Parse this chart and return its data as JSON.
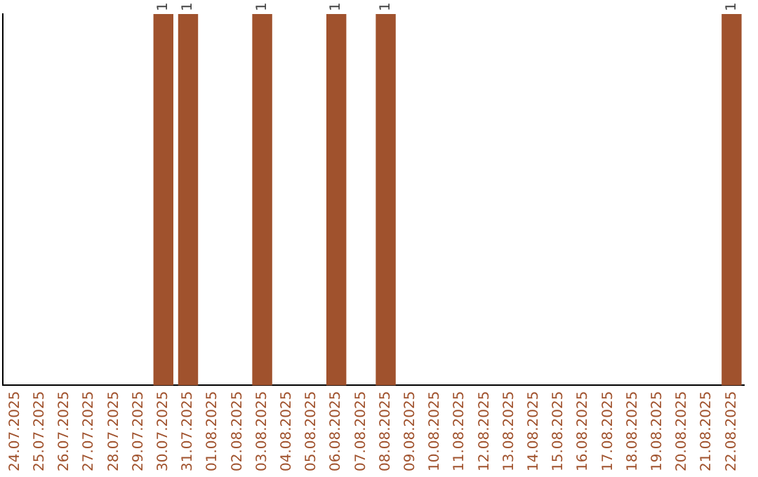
{
  "chart_data": {
    "type": "bar",
    "categories": [
      "24.07.2025",
      "25.07.2025",
      "26.07.2025",
      "27.07.2025",
      "28.07.2025",
      "29.07.2025",
      "30.07.2025",
      "31.07.2025",
      "01.08.2025",
      "02.08.2025",
      "03.08.2025",
      "04.08.2025",
      "05.08.2025",
      "06.08.2025",
      "07.08.2025",
      "08.08.2025",
      "09.08.2025",
      "10.08.2025",
      "11.08.2025",
      "12.08.2025",
      "13.08.2025",
      "14.08.2025",
      "15.08.2025",
      "16.08.2025",
      "17.08.2025",
      "18.08.2025",
      "19.08.2025",
      "20.08.2025",
      "21.08.2025",
      "22.08.2025"
    ],
    "values": [
      0,
      0,
      0,
      0,
      0,
      0,
      1,
      1,
      0,
      0,
      1,
      0,
      0,
      1,
      0,
      1,
      0,
      0,
      0,
      0,
      0,
      0,
      0,
      0,
      0,
      0,
      0,
      0,
      0,
      1
    ],
    "value_labels": [
      null,
      null,
      null,
      null,
      null,
      null,
      "1",
      "1",
      null,
      null,
      "1",
      null,
      null,
      "1",
      null,
      "1",
      null,
      null,
      null,
      null,
      null,
      null,
      null,
      null,
      null,
      null,
      null,
      null,
      null,
      "1"
    ],
    "color": "#a0522d",
    "tick_labels": "x",
    "grid": false,
    "legend": false
  }
}
